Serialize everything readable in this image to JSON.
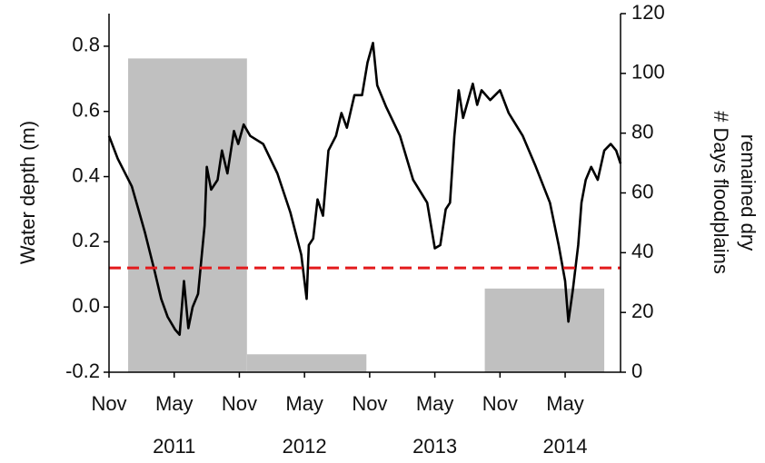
{
  "chart_data": {
    "type": "combo",
    "ylabel": "Water depth (m)",
    "y2label": [
      "# Days floodplains",
      "remained dry"
    ],
    "xlim": [
      0,
      47.1
    ],
    "xticks": [
      {
        "value": 0,
        "label": "Nov"
      },
      {
        "value": 6,
        "label": "May"
      },
      {
        "value": 12,
        "label": "Nov"
      },
      {
        "value": 18,
        "label": "May"
      },
      {
        "value": 24,
        "label": "Nov"
      },
      {
        "value": 30,
        "label": "May"
      },
      {
        "value": 36,
        "label": "Nov"
      },
      {
        "value": 42,
        "label": "May"
      }
    ],
    "year_labels": [
      {
        "value": 6,
        "label": "2011"
      },
      {
        "value": 18,
        "label": "2012"
      },
      {
        "value": 30,
        "label": "2013"
      },
      {
        "value": 42,
        "label": "2014"
      }
    ],
    "ylim": [
      -0.2,
      0.9
    ],
    "yticks": [
      -0.2,
      {
        "value": 0,
        "label": "0.0"
      },
      0.2,
      0.4,
      0.6,
      0.8
    ],
    "y2lim": [
      0,
      120
    ],
    "y2ticks": [
      0,
      20,
      40,
      60,
      80,
      100,
      120
    ],
    "series": [
      {
        "type": "bar",
        "axis": "y2",
        "color": "#c0c0c0",
        "bins": [
          1.76,
          12.7,
          23.7,
          34.6,
          45.6
        ],
        "values": [
          105,
          6,
          0,
          28
        ]
      },
      {
        "type": "line",
        "color": "#000000",
        "x": [
          0,
          0.8,
          2.1,
          2.7,
          3.3,
          4.2,
          4.8,
          5.4,
          6.1,
          6.5,
          6.9,
          7.3,
          7.7,
          8.2,
          8.8,
          9.0,
          9.4,
          10.0,
          10.4,
          10.9,
          11.5,
          11.9,
          12.4,
          13.0,
          14.2,
          15.5,
          16.7,
          17.7,
          18.2,
          18.4,
          18.8,
          19.2,
          19.7,
          20.2,
          20.9,
          21.4,
          21.9,
          22.6,
          23.3,
          23.8,
          24.3,
          24.7,
          25.5,
          26.8,
          28.0,
          29.3,
          30.0,
          30.5,
          31.0,
          31.4,
          31.8,
          32.2,
          32.6,
          33.5,
          33.9,
          34.3,
          35.1,
          36.0,
          36.8,
          38.1,
          39.3,
          40.6,
          41.4,
          42.0,
          42.3,
          42.7,
          43.2,
          43.5,
          43.9,
          44.4,
          45.0,
          45.6,
          46.2,
          46.7,
          47.1
        ],
        "values": [
          0.525,
          0.455,
          0.37,
          0.3,
          0.23,
          0.11,
          0.025,
          -0.03,
          -0.07,
          -0.085,
          0.08,
          -0.065,
          0.0,
          0.04,
          0.25,
          0.43,
          0.36,
          0.39,
          0.48,
          0.41,
          0.54,
          0.5,
          0.56,
          0.525,
          0.5,
          0.41,
          0.29,
          0.16,
          0.025,
          0.19,
          0.21,
          0.33,
          0.28,
          0.48,
          0.525,
          0.595,
          0.55,
          0.65,
          0.65,
          0.75,
          0.81,
          0.68,
          0.615,
          0.525,
          0.39,
          0.32,
          0.18,
          0.19,
          0.3,
          0.32,
          0.525,
          0.665,
          0.58,
          0.685,
          0.62,
          0.665,
          0.635,
          0.665,
          0.595,
          0.525,
          0.43,
          0.32,
          0.19,
          0.08,
          -0.045,
          0.05,
          0.19,
          0.32,
          0.39,
          0.43,
          0.39,
          0.48,
          0.5,
          0.48,
          0.44
        ]
      }
    ],
    "hline": {
      "value": 0.12,
      "color": "#e31a1c",
      "style": "dashed"
    }
  }
}
